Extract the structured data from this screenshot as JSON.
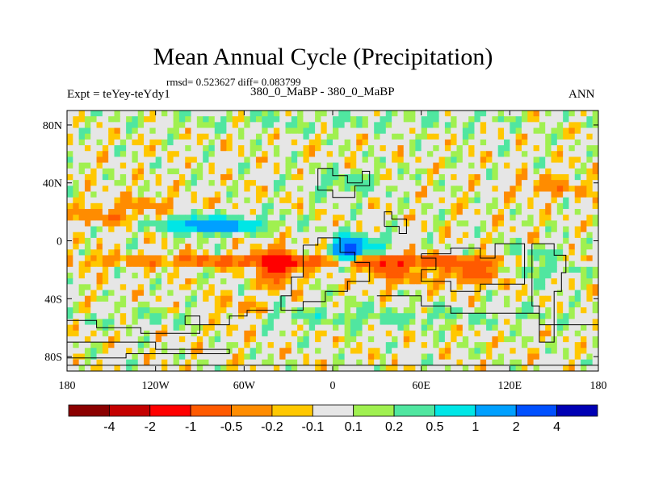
{
  "chart_data": {
    "type": "heatmap",
    "title": "Mean Annual Cycle (Precipitation)",
    "stats": "rmsd= 0.523627 diff= 0.083799",
    "expt_label": "Expt = teYey-teYdy1",
    "experiment": "380_0_MaBP - 380_0_MaBP",
    "season": "ANN",
    "xlim": [
      -180,
      180
    ],
    "ylim": [
      -90,
      90
    ],
    "x_ticks": [
      {
        "value": -180,
        "label": "180"
      },
      {
        "value": -120,
        "label": "120W"
      },
      {
        "value": -60,
        "label": "60W"
      },
      {
        "value": 0,
        "label": "0"
      },
      {
        "value": 60,
        "label": "60E"
      },
      {
        "value": 120,
        "label": "120E"
      },
      {
        "value": 180,
        "label": "180"
      }
    ],
    "y_ticks": [
      {
        "value": 80,
        "label": "80N"
      },
      {
        "value": 40,
        "label": "40N"
      },
      {
        "value": 0,
        "label": "0"
      },
      {
        "value": -40,
        "label": "40S"
      },
      {
        "value": -80,
        "label": "80S"
      }
    ],
    "colorbar": {
      "colors": [
        "#8b0000",
        "#c40000",
        "#ff0000",
        "#ff5a00",
        "#ff8c00",
        "#ffc800",
        "#e6e6e6",
        "#a0f050",
        "#50e6a0",
        "#00e6e6",
        "#00a0ff",
        "#0050ff",
        "#0000b4"
      ],
      "levels": [
        "-4",
        "-2",
        "-1",
        "-0.5",
        "-0.2",
        "-0.1",
        "0.1",
        "0.2",
        "0.5",
        "1",
        "2",
        "4"
      ]
    },
    "features": [
      {
        "lon": [
          -180,
          180
        ],
        "lat": [
          -10,
          -18
        ],
        "value": -0.8
      },
      {
        "lon": [
          -130,
          -40
        ],
        "lat": [
          5,
          18
        ],
        "value": 0.7
      },
      {
        "lon": [
          -100,
          -60
        ],
        "lat": [
          8,
          12
        ],
        "value": 1.5
      },
      {
        "lon": [
          -180,
          -120
        ],
        "lat": [
          10,
          22
        ],
        "value": -0.4
      },
      {
        "lon": [
          -160,
          -90
        ],
        "lat": [
          20,
          30
        ],
        "value": -0.3
      },
      {
        "lon": [
          -50,
          -25
        ],
        "lat": [
          -30,
          -5
        ],
        "value": -1.2
      },
      {
        "lon": [
          0,
          20
        ],
        "lat": [
          -15,
          2
        ],
        "value": 2.5
      },
      {
        "lon": [
          10,
          40
        ],
        "lat": [
          -10,
          5
        ],
        "value": 0.6
      },
      {
        "lon": [
          20,
          60
        ],
        "lat": [
          -30,
          -12
        ],
        "value": -0.6
      },
      {
        "lon": [
          70,
          120
        ],
        "lat": [
          -30,
          -12
        ],
        "value": -0.7
      },
      {
        "lon": [
          100,
          170
        ],
        "lat": [
          -25,
          -5
        ],
        "value": 0.5
      },
      {
        "lon": [
          -180,
          180
        ],
        "lat": [
          75,
          90
        ],
        "value": 0.15
      },
      {
        "lon": [
          -180,
          180
        ],
        "lat": [
          -90,
          -70
        ],
        "value": 0.0
      },
      {
        "lon": [
          -180,
          180
        ],
        "lat": [
          -60,
          -45
        ],
        "value": 0.25
      },
      {
        "lon": [
          -90,
          -40
        ],
        "lat": [
          -60,
          -40
        ],
        "value": -0.35
      },
      {
        "lon": [
          120,
          180
        ],
        "lat": [
          30,
          45
        ],
        "value": -0.3
      },
      {
        "lon": [
          -20,
          40
        ],
        "lat": [
          30,
          50
        ],
        "value": 0.3
      }
    ]
  }
}
